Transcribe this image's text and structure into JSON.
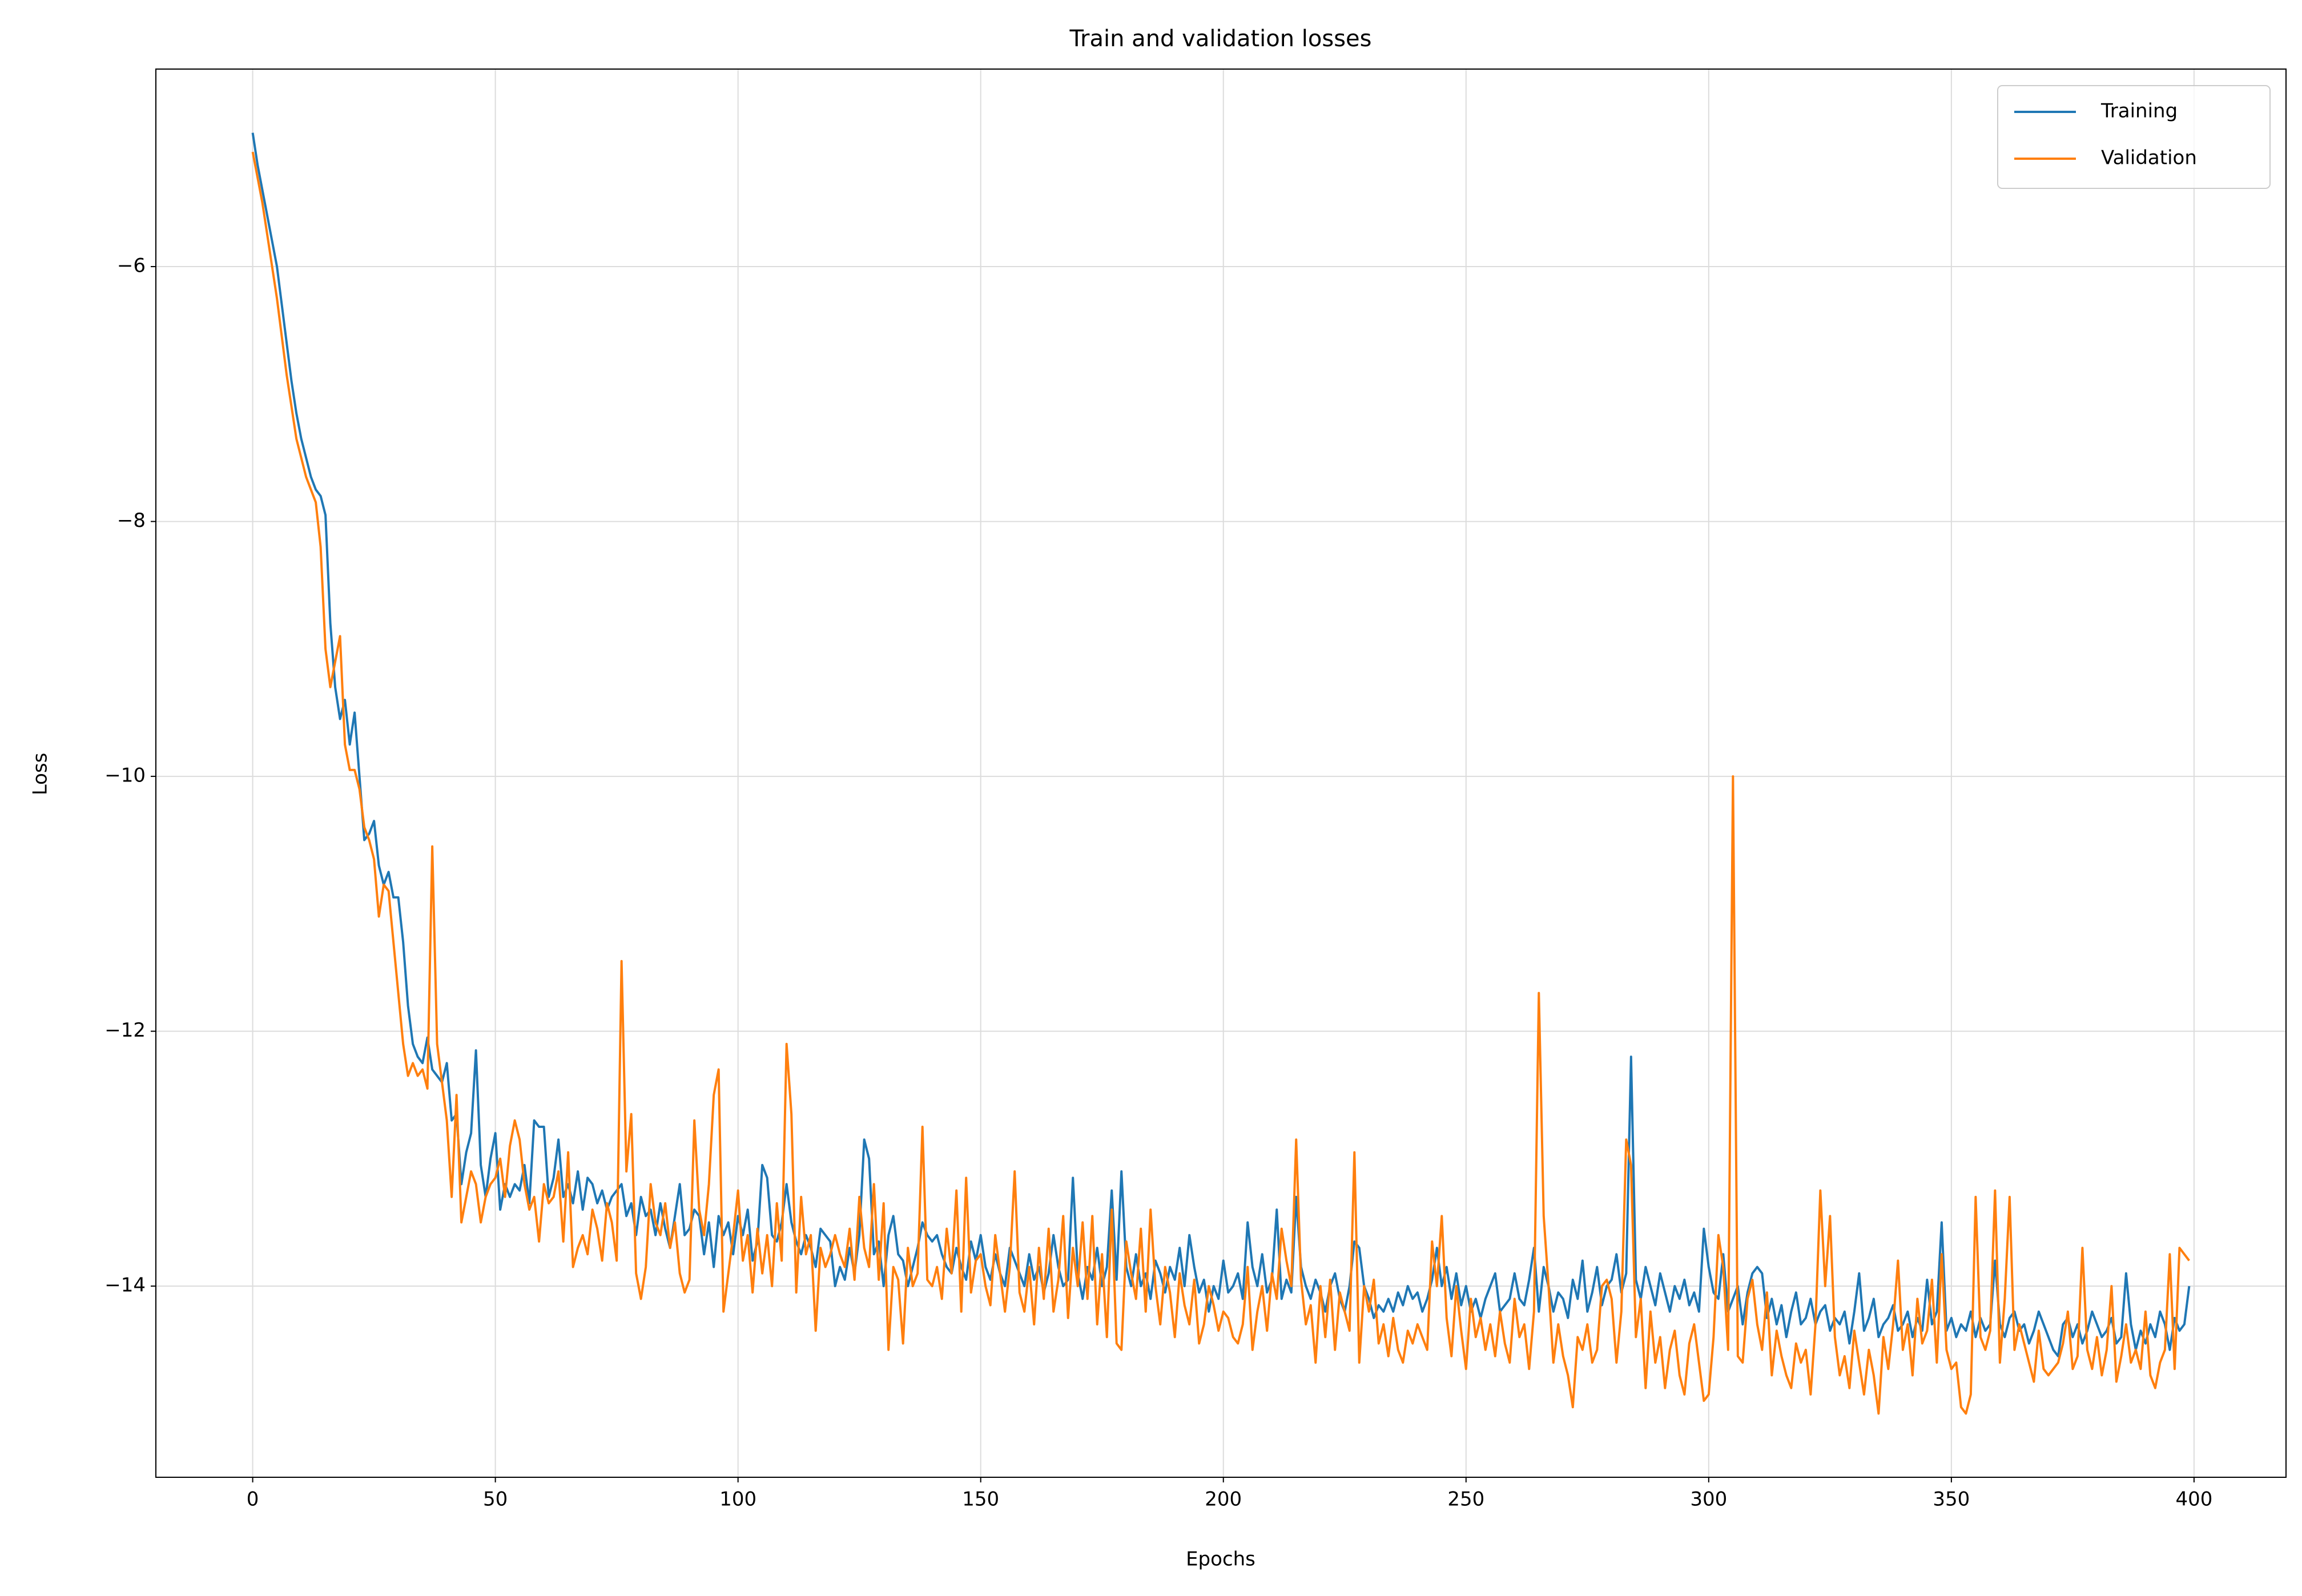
{
  "chart_data": {
    "type": "line",
    "title": "Train and validation losses",
    "xlabel": "Epochs",
    "ylabel": "Loss",
    "xlim": [
      -19.95,
      418.95
    ],
    "ylim": [
      -15.5,
      -4.45
    ],
    "xticks": [
      0,
      50,
      100,
      150,
      200,
      250,
      300,
      350,
      400
    ],
    "yticks": [
      {
        "value": -6,
        "label": "−6"
      },
      {
        "value": -8,
        "label": "−8"
      },
      {
        "value": -10,
        "label": "−10"
      },
      {
        "value": -12,
        "label": "−12"
      },
      {
        "value": -14,
        "label": "−14"
      }
    ],
    "grid": true,
    "legend": "upper right",
    "x": [
      0,
      1,
      2,
      3,
      4,
      5,
      6,
      7,
      8,
      9,
      10,
      11,
      12,
      13,
      14,
      15,
      16,
      17,
      18,
      19,
      20,
      21,
      22,
      23,
      24,
      25,
      26,
      27,
      28,
      29,
      30,
      31,
      32,
      33,
      34,
      35,
      36,
      37,
      38,
      39,
      40,
      41,
      42,
      43,
      44,
      45,
      46,
      47,
      48,
      49,
      50,
      51,
      52,
      53,
      54,
      55,
      56,
      57,
      58,
      59,
      60,
      61,
      62,
      63,
      64,
      65,
      66,
      67,
      68,
      69,
      70,
      71,
      72,
      73,
      74,
      75,
      76,
      77,
      78,
      79,
      80,
      81,
      82,
      83,
      84,
      85,
      86,
      87,
      88,
      89,
      90,
      91,
      92,
      93,
      94,
      95,
      96,
      97,
      98,
      99,
      100,
      101,
      102,
      103,
      104,
      105,
      106,
      107,
      108,
      109,
      110,
      111,
      112,
      113,
      114,
      115,
      116,
      117,
      118,
      119,
      120,
      121,
      122,
      123,
      124,
      125,
      126,
      127,
      128,
      129,
      130,
      131,
      132,
      133,
      134,
      135,
      136,
      137,
      138,
      139,
      140,
      141,
      142,
      143,
      144,
      145,
      146,
      147,
      148,
      149,
      150,
      151,
      152,
      153,
      154,
      155,
      156,
      157,
      158,
      159,
      160,
      161,
      162,
      163,
      164,
      165,
      166,
      167,
      168,
      169,
      170,
      171,
      172,
      173,
      174,
      175,
      176,
      177,
      178,
      179,
      180,
      181,
      182,
      183,
      184,
      185,
      186,
      187,
      188,
      189,
      190,
      191,
      192,
      193,
      194,
      195,
      196,
      197,
      198,
      199,
      200,
      201,
      202,
      203,
      204,
      205,
      206,
      207,
      208,
      209,
      210,
      211,
      212,
      213,
      214,
      215,
      216,
      217,
      218,
      219,
      220,
      221,
      222,
      223,
      224,
      225,
      226,
      227,
      228,
      229,
      230,
      231,
      232,
      233,
      234,
      235,
      236,
      237,
      238,
      239,
      240,
      241,
      242,
      243,
      244,
      245,
      246,
      247,
      248,
      249,
      250,
      251,
      252,
      253,
      254,
      255,
      256,
      257,
      258,
      259,
      260,
      261,
      262,
      263,
      264,
      265,
      266,
      267,
      268,
      269,
      270,
      271,
      272,
      273,
      274,
      275,
      276,
      277,
      278,
      279,
      280,
      281,
      282,
      283,
      284,
      285,
      286,
      287,
      288,
      289,
      290,
      291,
      292,
      293,
      294,
      295,
      296,
      297,
      298,
      299,
      300,
      301,
      302,
      303,
      304,
      305,
      306,
      307,
      308,
      309,
      310,
      311,
      312,
      313,
      314,
      315,
      316,
      317,
      318,
      319,
      320,
      321,
      322,
      323,
      324,
      325,
      326,
      327,
      328,
      329,
      330,
      331,
      332,
      333,
      334,
      335,
      336,
      337,
      338,
      339,
      340,
      341,
      342,
      343,
      344,
      345,
      346,
      347,
      348,
      349,
      350,
      351,
      352,
      353,
      354,
      355,
      356,
      357,
      358,
      359,
      360,
      361,
      362,
      363,
      364,
      365,
      366,
      367,
      368,
      369,
      370,
      371,
      372,
      373,
      374,
      375,
      376,
      377,
      378,
      379,
      380,
      381,
      382,
      383,
      384,
      385,
      386,
      387,
      388,
      389,
      390,
      391,
      392,
      393,
      394,
      395,
      396,
      397,
      398,
      399
    ],
    "series": [
      {
        "name": "Training",
        "color": "#1f77b4",
        "values": [
          -4.95,
          -5.2,
          -5.4,
          -5.6,
          -5.8,
          -6.0,
          -6.3,
          -6.6,
          -6.9,
          -7.15,
          -7.35,
          -7.5,
          -7.65,
          -7.75,
          -7.8,
          -7.95,
          -8.8,
          -9.3,
          -9.55,
          -9.4,
          -9.75,
          -9.5,
          -10.0,
          -10.5,
          -10.45,
          -10.35,
          -10.7,
          -10.85,
          -10.75,
          -10.95,
          -10.95,
          -11.3,
          -11.8,
          -12.1,
          -12.2,
          -12.25,
          -12.05,
          -12.3,
          -12.35,
          -12.4,
          -12.25,
          -12.7,
          -12.65,
          -13.2,
          -12.95,
          -12.8,
          -12.15,
          -13.05,
          -13.3,
          -13.0,
          -12.8,
          -13.4,
          -13.2,
          -13.3,
          -13.2,
          -13.25,
          -13.05,
          -13.35,
          -12.7,
          -12.75,
          -12.75,
          -13.3,
          -13.15,
          -12.85,
          -13.3,
          -13.2,
          -13.35,
          -13.1,
          -13.4,
          -13.15,
          -13.2,
          -13.35,
          -13.25,
          -13.4,
          -13.3,
          -13.25,
          -13.2,
          -13.45,
          -13.35,
          -13.6,
          -13.3,
          -13.45,
          -13.4,
          -13.6,
          -13.35,
          -13.55,
          -13.7,
          -13.45,
          -13.2,
          -13.6,
          -13.55,
          -13.4,
          -13.45,
          -13.75,
          -13.5,
          -13.85,
          -13.45,
          -13.6,
          -13.5,
          -13.75,
          -13.45,
          -13.6,
          -13.4,
          -13.8,
          -13.65,
          -13.05,
          -13.15,
          -13.6,
          -13.65,
          -13.5,
          -13.2,
          -13.5,
          -13.65,
          -13.75,
          -13.6,
          -13.7,
          -13.85,
          -13.55,
          -13.6,
          -13.65,
          -14.0,
          -13.85,
          -13.95,
          -13.7,
          -13.9,
          -13.6,
          -12.85,
          -13.0,
          -13.75,
          -13.65,
          -14.0,
          -13.6,
          -13.45,
          -13.75,
          -13.8,
          -14.0,
          -13.85,
          -13.7,
          -13.5,
          -13.6,
          -13.65,
          -13.6,
          -13.75,
          -13.85,
          -13.9,
          -13.7,
          -13.85,
          -13.95,
          -13.65,
          -13.8,
          -13.6,
          -13.85,
          -13.95,
          -13.75,
          -13.9,
          -14.0,
          -13.7,
          -13.8,
          -13.9,
          -14.0,
          -13.75,
          -13.95,
          -13.85,
          -14.05,
          -13.9,
          -13.6,
          -13.85,
          -14.0,
          -13.95,
          -13.15,
          -13.9,
          -14.1,
          -13.85,
          -13.95,
          -13.7,
          -14.0,
          -13.85,
          -13.25,
          -13.95,
          -13.1,
          -13.85,
          -14.0,
          -13.75,
          -14.0,
          -13.9,
          -14.1,
          -13.8,
          -13.9,
          -14.05,
          -13.85,
          -13.95,
          -13.7,
          -14.0,
          -13.6,
          -13.85,
          -14.05,
          -13.95,
          -14.2,
          -14.0,
          -14.1,
          -13.8,
          -14.05,
          -14.0,
          -13.9,
          -14.1,
          -13.5,
          -13.85,
          -14.0,
          -13.75,
          -14.05,
          -13.95,
          -13.4,
          -14.1,
          -13.95,
          -14.05,
          -13.3,
          -13.85,
          -14.0,
          -14.1,
          -13.95,
          -14.05,
          -14.2,
          -14.0,
          -13.9,
          -14.1,
          -14.2,
          -14.0,
          -13.65,
          -13.7,
          -14.0,
          -14.1,
          -14.25,
          -14.15,
          -14.2,
          -14.1,
          -14.2,
          -14.05,
          -14.15,
          -14.0,
          -14.1,
          -14.05,
          -14.2,
          -14.1,
          -13.95,
          -13.7,
          -14.0,
          -13.85,
          -14.1,
          -13.9,
          -14.15,
          -14.0,
          -14.2,
          -14.1,
          -14.25,
          -14.1,
          -14.0,
          -13.9,
          -14.2,
          -14.15,
          -14.1,
          -13.9,
          -14.1,
          -14.15,
          -13.95,
          -13.7,
          -14.2,
          -13.85,
          -14.0,
          -14.2,
          -14.05,
          -14.1,
          -14.25,
          -13.95,
          -14.1,
          -13.8,
          -14.2,
          -14.05,
          -13.85,
          -14.15,
          -14.0,
          -13.95,
          -13.75,
          -14.05,
          -13.9,
          -12.2,
          -13.95,
          -14.1,
          -13.85,
          -14.0,
          -14.15,
          -13.9,
          -14.05,
          -14.2,
          -14.0,
          -14.1,
          -13.95,
          -14.15,
          -14.05,
          -14.2,
          -13.55,
          -13.85,
          -14.05,
          -14.1,
          -13.75,
          -14.2,
          -14.1,
          -14.0,
          -14.3,
          -14.05,
          -13.9,
          -13.85,
          -13.9,
          -14.25,
          -14.1,
          -14.3,
          -14.15,
          -14.4,
          -14.2,
          -14.05,
          -14.3,
          -14.25,
          -14.1,
          -14.3,
          -14.2,
          -14.15,
          -14.35,
          -14.25,
          -14.3,
          -14.2,
          -14.45,
          -14.2,
          -13.9,
          -14.35,
          -14.25,
          -14.1,
          -14.4,
          -14.3,
          -14.25,
          -14.15,
          -14.35,
          -14.3,
          -14.2,
          -14.4,
          -14.25,
          -14.35,
          -13.95,
          -14.3,
          -14.2,
          -13.5,
          -14.35,
          -14.25,
          -14.4,
          -14.3,
          -14.35,
          -14.2,
          -14.4,
          -14.25,
          -14.35,
          -14.3,
          -13.8,
          -14.3,
          -14.4,
          -14.25,
          -14.2,
          -14.35,
          -14.3,
          -14.45,
          -14.35,
          -14.2,
          -14.3,
          -14.4,
          -14.5,
          -14.55,
          -14.3,
          -14.25,
          -14.4,
          -14.3,
          -14.45,
          -14.35,
          -14.2,
          -14.3,
          -14.4,
          -14.35,
          -14.25,
          -14.45,
          -14.4,
          -13.9,
          -14.3,
          -14.5,
          -14.35,
          -14.45,
          -14.3,
          -14.4,
          -14.2,
          -14.3,
          -14.5,
          -14.25,
          -14.35,
          -14.3,
          -14.0
        ]
      },
      {
        "name": "Validation",
        "color": "#ff7f0e",
        "values": [
          -5.1,
          -5.3,
          -5.5,
          -5.75,
          -6.0,
          -6.25,
          -6.55,
          -6.85,
          -7.1,
          -7.35,
          -7.5,
          -7.65,
          -7.75,
          -7.85,
          -8.2,
          -9.0,
          -9.3,
          -9.1,
          -8.9,
          -9.75,
          -9.95,
          -9.95,
          -10.1,
          -10.4,
          -10.5,
          -10.65,
          -11.1,
          -10.85,
          -10.9,
          -11.3,
          -11.7,
          -12.1,
          -12.35,
          -12.25,
          -12.35,
          -12.3,
          -12.45,
          -10.55,
          -12.1,
          -12.4,
          -12.7,
          -13.3,
          -12.5,
          -13.5,
          -13.3,
          -13.1,
          -13.2,
          -13.5,
          -13.3,
          -13.2,
          -13.15,
          -13.0,
          -13.3,
          -12.9,
          -12.7,
          -12.85,
          -13.2,
          -13.4,
          -13.3,
          -13.65,
          -13.2,
          -13.35,
          -13.3,
          -13.1,
          -13.65,
          -12.95,
          -13.85,
          -13.7,
          -13.6,
          -13.75,
          -13.4,
          -13.55,
          -13.8,
          -13.35,
          -13.5,
          -13.8,
          -11.45,
          -13.1,
          -12.65,
          -13.9,
          -14.1,
          -13.85,
          -13.2,
          -13.5,
          -13.6,
          -13.35,
          -13.7,
          -13.5,
          -13.9,
          -14.05,
          -13.95,
          -12.7,
          -13.4,
          -13.6,
          -13.2,
          -12.5,
          -12.3,
          -14.2,
          -13.9,
          -13.6,
          -13.25,
          -13.8,
          -13.6,
          -14.05,
          -13.55,
          -13.9,
          -13.6,
          -14.0,
          -13.35,
          -13.8,
          -12.1,
          -12.65,
          -14.05,
          -13.3,
          -13.75,
          -13.6,
          -14.35,
          -13.7,
          -13.85,
          -13.75,
          -13.6,
          -13.75,
          -13.85,
          -13.55,
          -13.95,
          -13.3,
          -13.7,
          -13.85,
          -13.2,
          -13.95,
          -13.35,
          -14.5,
          -13.85,
          -13.95,
          -14.45,
          -13.7,
          -14.0,
          -13.9,
          -12.75,
          -13.95,
          -14.0,
          -13.85,
          -14.1,
          -13.55,
          -13.9,
          -13.25,
          -14.2,
          -13.15,
          -14.05,
          -13.8,
          -13.75,
          -14.0,
          -14.15,
          -13.6,
          -13.9,
          -14.2,
          -13.85,
          -13.1,
          -14.05,
          -14.2,
          -13.85,
          -14.3,
          -13.7,
          -14.1,
          -13.55,
          -14.2,
          -13.95,
          -13.45,
          -14.25,
          -13.7,
          -14.0,
          -13.5,
          -14.1,
          -13.45,
          -14.3,
          -13.75,
          -14.4,
          -13.4,
          -14.45,
          -14.5,
          -13.65,
          -13.9,
          -14.1,
          -13.55,
          -14.2,
          -13.4,
          -14.0,
          -14.3,
          -13.85,
          -14.05,
          -14.4,
          -13.9,
          -14.15,
          -14.3,
          -13.95,
          -14.45,
          -14.3,
          -14.0,
          -14.15,
          -14.35,
          -14.2,
          -14.25,
          -14.4,
          -14.45,
          -14.3,
          -13.85,
          -14.5,
          -14.2,
          -14.0,
          -14.35,
          -13.9,
          -14.1,
          -13.55,
          -13.8,
          -14.0,
          -12.85,
          -13.95,
          -14.3,
          -14.15,
          -14.6,
          -14.0,
          -14.4,
          -13.95,
          -14.5,
          -14.05,
          -14.2,
          -14.35,
          -12.95,
          -14.6,
          -14.0,
          -14.2,
          -13.95,
          -14.45,
          -14.3,
          -14.55,
          -14.25,
          -14.5,
          -14.6,
          -14.35,
          -14.45,
          -14.3,
          -14.4,
          -14.5,
          -13.65,
          -14.0,
          -13.45,
          -14.25,
          -14.55,
          -14.0,
          -14.35,
          -14.65,
          -14.1,
          -14.4,
          -14.25,
          -14.5,
          -14.3,
          -14.55,
          -14.2,
          -14.45,
          -14.6,
          -14.1,
          -14.4,
          -14.3,
          -14.65,
          -14.2,
          -11.7,
          -13.45,
          -14.0,
          -14.6,
          -14.3,
          -14.55,
          -14.7,
          -14.95,
          -14.4,
          -14.5,
          -14.3,
          -14.6,
          -14.5,
          -14.0,
          -13.95,
          -14.1,
          -14.6,
          -14.2,
          -12.85,
          -13.05,
          -14.4,
          -14.1,
          -14.8,
          -14.2,
          -14.6,
          -14.4,
          -14.8,
          -14.5,
          -14.35,
          -14.7,
          -14.85,
          -14.45,
          -14.3,
          -14.6,
          -14.9,
          -14.85,
          -14.4,
          -13.6,
          -13.85,
          -14.5,
          -10.0,
          -14.55,
          -14.6,
          -14.1,
          -13.95,
          -14.3,
          -14.5,
          -14.05,
          -14.7,
          -14.35,
          -14.55,
          -14.7,
          -14.8,
          -14.45,
          -14.6,
          -14.5,
          -14.85,
          -14.3,
          -13.25,
          -14.0,
          -13.45,
          -14.4,
          -14.7,
          -14.55,
          -14.8,
          -14.35,
          -14.6,
          -14.85,
          -14.5,
          -14.7,
          -15.0,
          -14.4,
          -14.65,
          -14.3,
          -13.8,
          -14.5,
          -14.3,
          -14.7,
          -14.1,
          -14.45,
          -14.35,
          -13.95,
          -14.6,
          -13.75,
          -14.5,
          -14.65,
          -14.6,
          -14.95,
          -15.0,
          -14.85,
          -13.3,
          -14.4,
          -14.5,
          -14.35,
          -13.25,
          -14.6,
          -14.1,
          -13.3,
          -14.5,
          -14.3,
          -14.45,
          -14.6,
          -14.75,
          -14.35,
          -14.65,
          -14.7,
          -14.65,
          -14.6,
          -14.45,
          -14.2,
          -14.65,
          -14.55,
          -13.7,
          -14.5,
          -14.65,
          -14.4,
          -14.7,
          -14.5,
          -14.0,
          -14.75,
          -14.55,
          -14.3,
          -14.6,
          -14.5,
          -14.65,
          -14.2,
          -14.7,
          -14.8,
          -14.6,
          -14.5,
          -13.75,
          -14.65,
          -13.7,
          -13.75,
          -13.8
        ]
      }
    ]
  }
}
